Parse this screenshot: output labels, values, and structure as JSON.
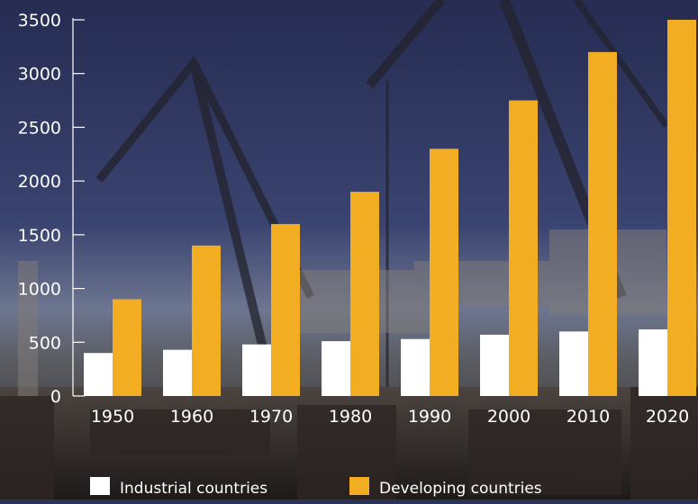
{
  "chart_data": {
    "type": "bar",
    "title": "",
    "xlabel": "",
    "ylabel": "",
    "categories": [
      "1950",
      "1960",
      "1970",
      "1980",
      "1990",
      "2000",
      "2010",
      "2020"
    ],
    "series": [
      {
        "name": "Industrial countries",
        "color": "#ffffff",
        "values": [
          400,
          430,
          480,
          510,
          530,
          570,
          600,
          620
        ]
      },
      {
        "name": "Developing countries",
        "color": "#f3ad22",
        "values": [
          900,
          1400,
          1600,
          1900,
          2300,
          2750,
          3200,
          3500
        ]
      }
    ],
    "ylim": [
      0,
      3500
    ],
    "yticks": [
      0,
      500,
      1000,
      1500,
      2000,
      2500,
      3000,
      3500
    ],
    "grid": false,
    "legend_position": "bottom"
  }
}
